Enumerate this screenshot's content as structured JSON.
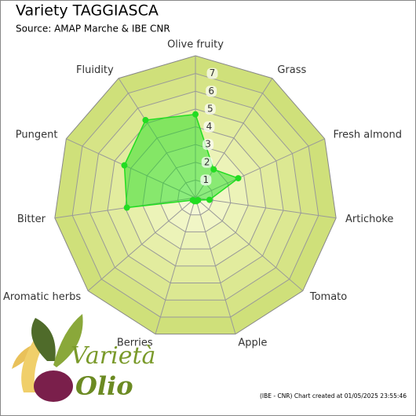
{
  "chart_data": {
    "type": "radar",
    "title": "Variety TAGGIASCA",
    "subtitle": "Source: AMAP Marche & IBE CNR",
    "categories": [
      "Olive fruity",
      "Grass",
      "Fresh almond",
      "Artichoke",
      "Tomato",
      "Apple",
      "Berries",
      "Aromatic herbs",
      "Bitter",
      "Pungent",
      "Fluidity"
    ],
    "values": [
      4.7,
      1.9,
      2.65,
      0.8,
      0.2,
      0.2,
      0.2,
      0.2,
      3.9,
      4.4,
      5.2
    ],
    "color": "#22dd22",
    "rlim": [
      0,
      8
    ],
    "rticks": [
      1,
      2,
      3,
      4,
      5,
      6,
      7
    ],
    "footer": "(IBE - CNR) Chart created at 01/05/2025 23:55:46"
  },
  "logo": {
    "line1": "Varietà",
    "line2": "Olio"
  }
}
